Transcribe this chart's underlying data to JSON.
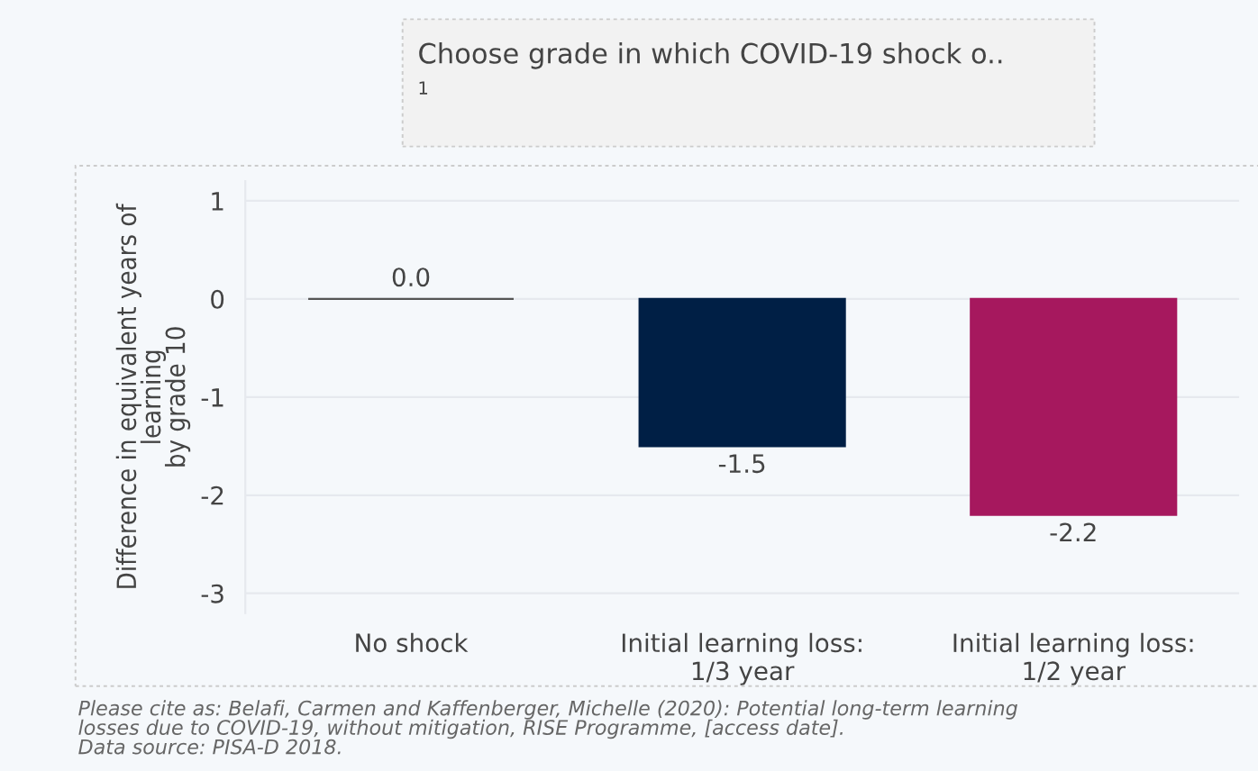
{
  "chart_data": {
    "type": "bar",
    "ylabel": "Difference in equivalent years of\nlearning\nby grade 10",
    "categories": [
      "No shock",
      "Initial learning loss:\n1/3 year",
      "Initial learning loss:\n1/2 year"
    ],
    "values": [
      0.0,
      -1.5,
      -2.2
    ],
    "colors": [
      "#555555",
      "#001f45",
      "#a6185e"
    ],
    "value_labels": [
      "0.0",
      "-1.5",
      "-2.2"
    ],
    "ylim": [
      -3.2,
      1.2
    ],
    "yticks": [
      1,
      0,
      -1,
      -2,
      -3
    ],
    "grid": "y",
    "annotations": [
      "Choose grade in which COVID-19 shock o..",
      "1",
      "Please cite as: Belafi, Carmen and Kaffenberger, Michelle (2020): Potential long-term learning\nlosses due to COVID-19, without mitigation, RISE Programme, [access date].\nData source: PISA-D 2018."
    ]
  }
}
